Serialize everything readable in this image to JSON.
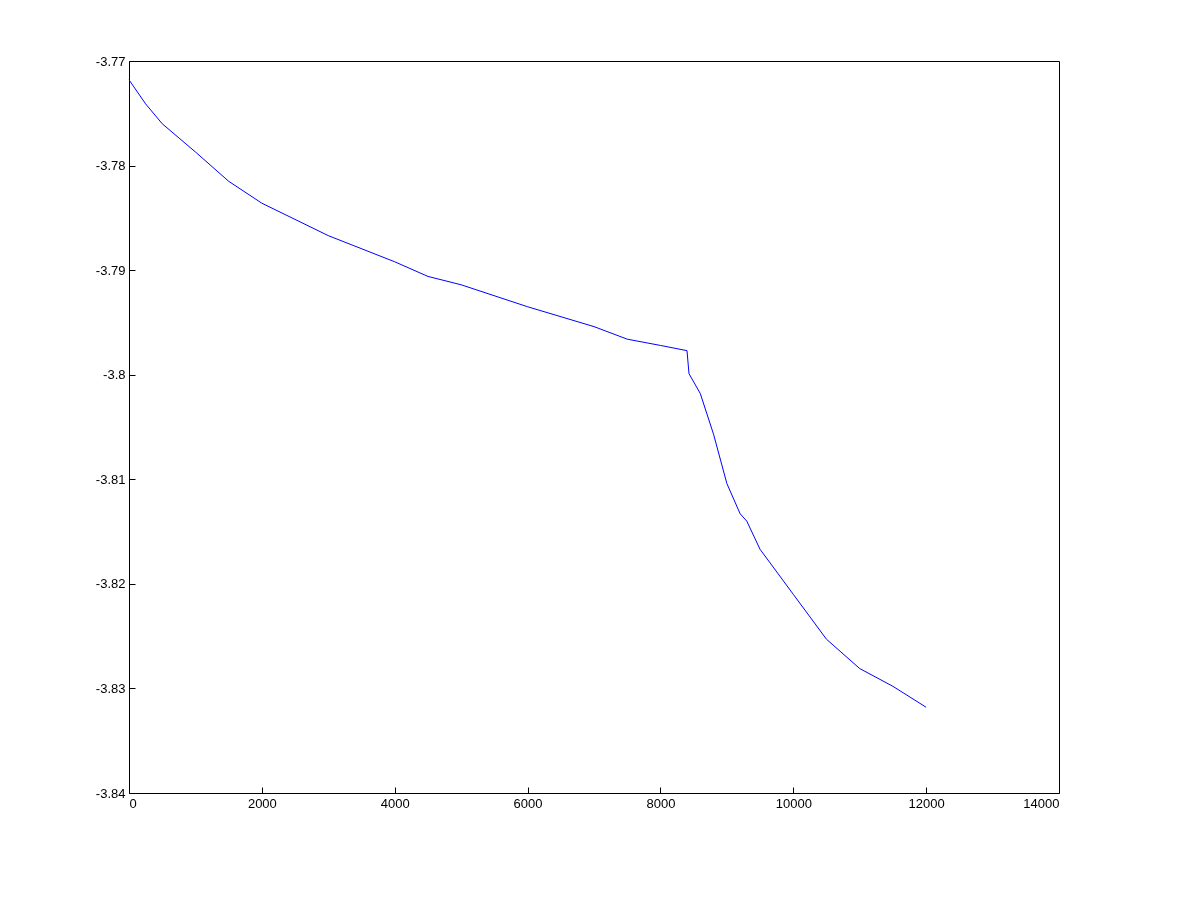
{
  "chart_data": {
    "type": "line",
    "x": [
      0,
      250,
      500,
      1000,
      1500,
      2000,
      3000,
      4000,
      4500,
      5000,
      6000,
      7000,
      7500,
      8000,
      8400,
      8430,
      8600,
      8800,
      9000,
      9200,
      9300,
      9500,
      10000,
      10500,
      11000,
      11500,
      12000
    ],
    "series": [
      {
        "color": "#0000ff",
        "values": [
          -3.7718,
          -3.7741,
          -3.776,
          -3.7787,
          -3.7815,
          -3.7836,
          -3.7867,
          -3.7892,
          -3.7906,
          -3.7914,
          -3.7935,
          -3.7954,
          -3.7966,
          -3.7972,
          -3.7977,
          -3.7999,
          -3.8018,
          -3.8057,
          -3.8104,
          -3.8133,
          -3.814,
          -3.8167,
          -3.821,
          -3.8253,
          -3.8281,
          -3.8298,
          -3.8318
        ]
      }
    ],
    "xlim": [
      0,
      14000
    ],
    "xticks": [
      0,
      2000,
      4000,
      6000,
      8000,
      10000,
      12000,
      14000
    ],
    "ylim": [
      -3.84,
      -3.77
    ],
    "yticks": [
      -3.84,
      -3.83,
      -3.82,
      -3.81,
      -3.8,
      -3.79,
      -3.78,
      -3.77
    ],
    "grid": false,
    "marker": "none",
    "line_style": "solid"
  }
}
